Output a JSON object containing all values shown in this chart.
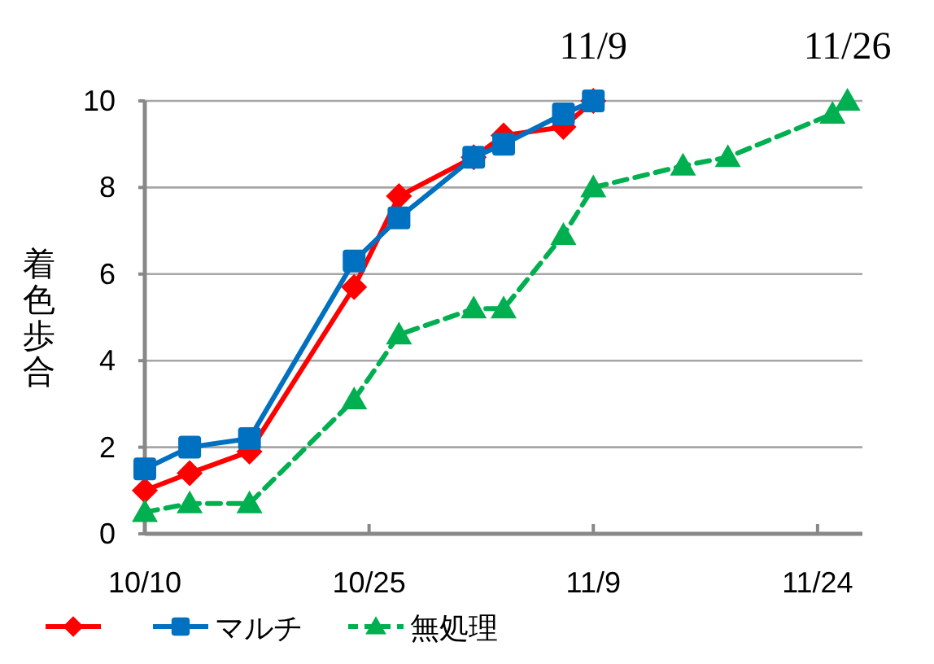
{
  "chart_data": {
    "type": "line",
    "ylabel": "着色歩合",
    "xlim": [
      "--10-10",
      "--11-27"
    ],
    "xticks": [
      {
        "value": "--10-10",
        "label": "10/10"
      },
      {
        "value": "--10-25",
        "label": "10/25"
      },
      {
        "value": "--11-09",
        "label": "11/9"
      },
      {
        "value": "--11-24",
        "label": "11/24"
      }
    ],
    "ylim": [
      0,
      10
    ],
    "yticks": [
      0,
      2,
      4,
      6,
      8,
      10
    ],
    "grid": "y",
    "legend": "bottom",
    "series": [
      {
        "color": "#ff0000",
        "marker": "diamond",
        "line_style": "solid",
        "x": [
          "--10-10",
          "--10-13",
          "--10-17",
          "--10-24",
          "--10-27",
          "--11-01",
          "--11-03",
          "--11-07",
          "--11-09"
        ],
        "values": [
          1.0,
          1.4,
          1.9,
          5.7,
          7.8,
          8.7,
          9.2,
          9.4,
          10.0
        ]
      },
      {
        "name": "マルチ",
        "color": "#0070c0",
        "marker": "square",
        "line_style": "solid",
        "x": [
          "--10-10",
          "--10-13",
          "--10-17",
          "--10-24",
          "--10-27",
          "--11-01",
          "--11-03",
          "--11-07",
          "--11-09"
        ],
        "values": [
          1.5,
          2.0,
          2.2,
          6.3,
          7.3,
          8.7,
          9.0,
          9.7,
          10.0
        ]
      },
      {
        "name": "無処理",
        "color": "#00b050",
        "marker": "triangle",
        "line_style": "dashed",
        "x": [
          "--10-10",
          "--10-13",
          "--10-17",
          "--10-24",
          "--10-27",
          "--11-01",
          "--11-03",
          "--11-07",
          "--11-09",
          "--11-15",
          "--11-18",
          "--11-25",
          "--11-26"
        ],
        "values": [
          0.5,
          0.7,
          0.7,
          3.1,
          4.6,
          5.2,
          5.2,
          6.9,
          8.0,
          8.5,
          8.7,
          9.7,
          10.0
        ]
      }
    ],
    "annotations": [
      {
        "text": "11/9",
        "x": "--11-09",
        "y": 10
      },
      {
        "text": "11/26",
        "x": "--11-26",
        "y": 10
      }
    ]
  }
}
